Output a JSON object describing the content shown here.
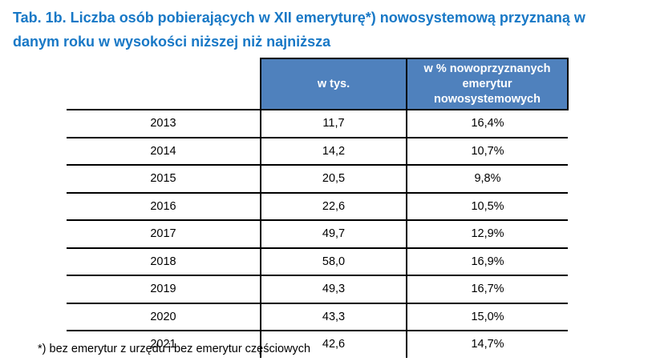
{
  "title": {
    "line1": "Tab. 1b. Liczba osób pobierających w XII emeryturę*) nowosystemową przyznaną w",
    "line2": "danym roku w wysokości niższej niż najniższa"
  },
  "table": {
    "columns": [
      {
        "label": ""
      },
      {
        "label": "w tys."
      },
      {
        "label": "w % nowoprzyznanych emerytur nowosystemowych"
      }
    ],
    "rows": [
      {
        "year": "2013",
        "thousands": "11,7",
        "percent": "16,4%"
      },
      {
        "year": "2014",
        "thousands": "14,2",
        "percent": "10,7%"
      },
      {
        "year": "2015",
        "thousands": "20,5",
        "percent": "9,8%"
      },
      {
        "year": "2016",
        "thousands": "22,6",
        "percent": "10,5%"
      },
      {
        "year": "2017",
        "thousands": "49,7",
        "percent": "12,9%"
      },
      {
        "year": "2018",
        "thousands": "58,0",
        "percent": "16,9%"
      },
      {
        "year": "2019",
        "thousands": "49,3",
        "percent": "16,7%"
      },
      {
        "year": "2020",
        "thousands": "43,3",
        "percent": "15,0%"
      },
      {
        "year": "2021",
        "thousands": "42,6",
        "percent": "14,7%"
      }
    ]
  },
  "footnote": "*) bez emerytur z urzędu i bez emerytur częściowych",
  "colors": {
    "title_text": "#1878c6",
    "header_fill": "#4f81bd",
    "header_text": "#ffffff",
    "border": "#000000",
    "body_text": "#000000",
    "background": "#ffffff"
  }
}
